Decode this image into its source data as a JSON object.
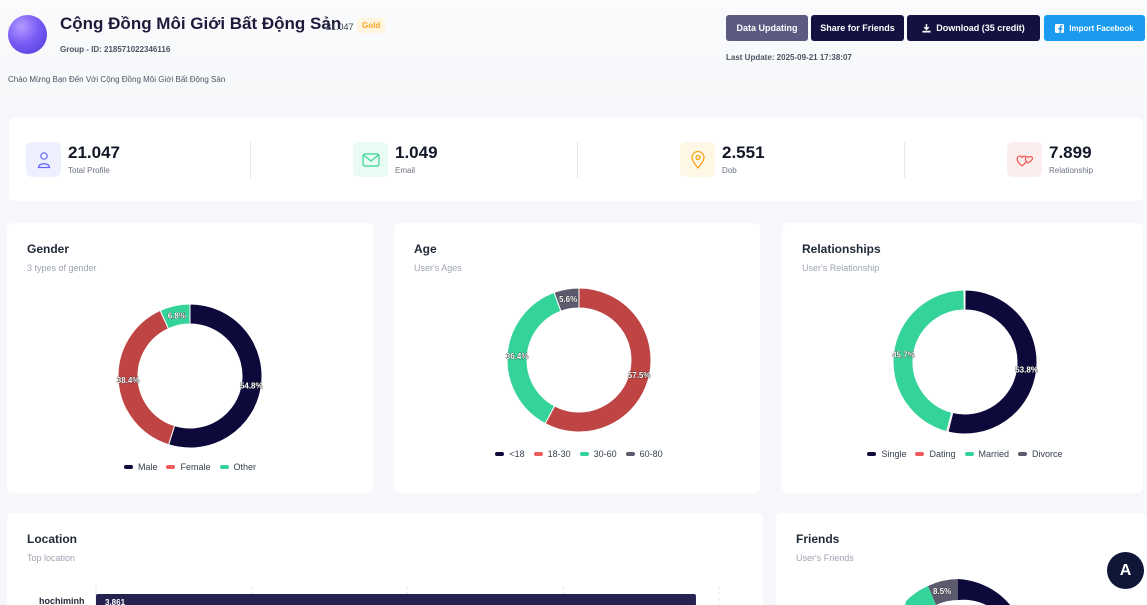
{
  "group": {
    "name": "Cộng Đồng Môi Giới Bất Động Sản",
    "member_count": "21.047",
    "tier": "Gold",
    "group_id": "Group - ID: 218571022346116",
    "welcome": "Chào Mừng Bạn Đến Với Cộng Đồng Môi Giới Bất Động Sản"
  },
  "actions": {
    "data_updating": "Data Updating",
    "share": "Share for Friends",
    "download": "Download (35 credit)",
    "import_facebook": "Import Facebook",
    "last_update": "Last Update: 2025-09-21 17:38:07"
  },
  "stats": [
    {
      "value": "21.047",
      "label": "Total Profile",
      "icon": "user-icon",
      "color": "#6366f1"
    },
    {
      "value": "1.049",
      "label": "Email",
      "icon": "mail-icon",
      "color": "#34d399"
    },
    {
      "value": "2.551",
      "label": "Dob",
      "icon": "location-pin-icon",
      "color": "#f59e0b"
    },
    {
      "value": "7.899",
      "label": "Relationship",
      "icon": "hearts-icon",
      "color": "#ef4444"
    }
  ],
  "gender": {
    "title": "Gender",
    "subtitle": "3 types of gender",
    "legend": [
      "Male",
      "Female",
      "Other"
    ]
  },
  "age": {
    "title": "Age",
    "subtitle": "User's Ages",
    "legend": [
      "<18",
      "18-30",
      "30-60",
      "60-80"
    ]
  },
  "relationships": {
    "title": "Relationships",
    "subtitle": "User's Relationship",
    "legend": [
      "Single",
      "Dating",
      "Married",
      "Divorce"
    ]
  },
  "location": {
    "title": "Location",
    "subtitle": "Top location"
  },
  "friends": {
    "title": "Friends",
    "subtitle": "User's Friends"
  },
  "chart_data": [
    {
      "type": "pie",
      "title": "Gender",
      "categories": [
        "Male",
        "Female",
        "Other"
      ],
      "values": [
        54.8,
        38.4,
        6.8
      ],
      "labels": [
        "54.8%",
        "38.4%",
        "6.8%"
      ],
      "colors": [
        "#0d0a3b",
        "#bf4444",
        "#34d399"
      ]
    },
    {
      "type": "pie",
      "title": "Age",
      "categories": [
        "<18",
        "18-30",
        "30-60",
        "60-80"
      ],
      "values": [
        0,
        57.5,
        36.4,
        5.6
      ],
      "labels": [
        "",
        "57.5%",
        "36.4%",
        "5.6%"
      ],
      "colors": [
        "#0d0a3b",
        "#bf4444",
        "#34d399",
        "#5c5b6e"
      ]
    },
    {
      "type": "pie",
      "title": "Relationships",
      "categories": [
        "Single",
        "Dating",
        "Married",
        "Divorce"
      ],
      "values": [
        53.8,
        0.3,
        45.7,
        0.2
      ],
      "labels": [
        "53.8%",
        "",
        "45.7%",
        ""
      ],
      "colors": [
        "#0d0a3b",
        "#ef5b5b",
        "#34d399",
        "#5c5b6e"
      ]
    },
    {
      "type": "bar",
      "title": "Location",
      "categories": [
        "hochiminh"
      ],
      "values": [
        3861
      ],
      "value_labels": [
        "3.861"
      ],
      "color": "#26224f"
    },
    {
      "type": "pie",
      "title": "Friends",
      "values_visible": [
        8.5
      ],
      "labels": [
        "8.5%"
      ]
    }
  ]
}
